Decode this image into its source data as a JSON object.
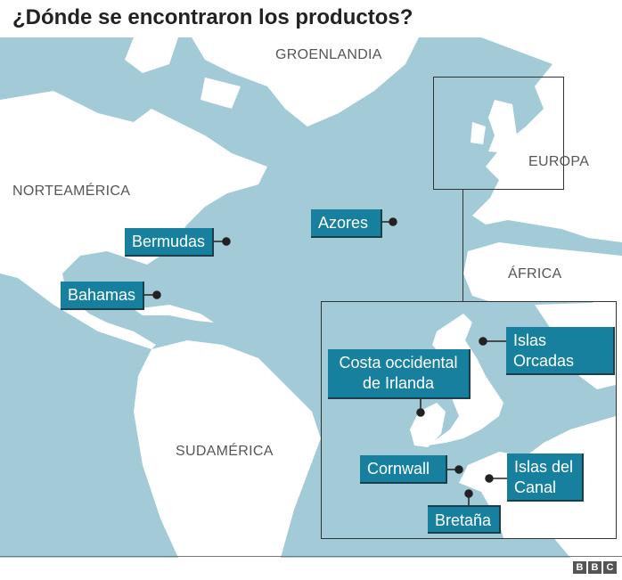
{
  "title": "¿Dónde se encontraron los productos?",
  "colors": {
    "ocean": "#a3cad7",
    "land": "#ffffff",
    "label_box": "#17809e"
  },
  "regions": {
    "greenland": "GROENLANDIA",
    "north_america": "NORTEAMÉRICA",
    "south_america": "SUDAMÉRICA",
    "europe": "EUROPA",
    "africa": "ÁFRICA"
  },
  "locations": {
    "bermudas": "Bermudas",
    "bahamas": "Bahamas",
    "azores": "Azores",
    "orcadas": "Islas Orcadas",
    "irlanda": "Costa occidental de Irlanda",
    "cornwall": "Cornwall",
    "canal": "Islas del Canal",
    "bretana": "Bretaña"
  },
  "logo": "BBC"
}
